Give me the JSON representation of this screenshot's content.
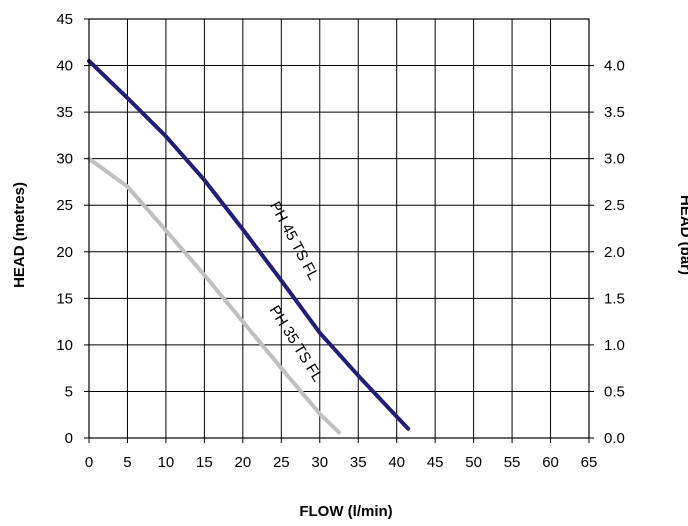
{
  "chart_data": {
    "type": "line",
    "xlabel": "FLOW (l/min)",
    "ylabel": "HEAD (metres)",
    "y2label": "HEAD (bar)",
    "xlim": [
      0,
      65
    ],
    "ylim": [
      0,
      45
    ],
    "y2lim": [
      0,
      4.5
    ],
    "xticks": [
      "0",
      "5",
      "10",
      "15",
      "20",
      "25",
      "30",
      "35",
      "40",
      "45",
      "50",
      "55",
      "60",
      "65"
    ],
    "yticks": [
      "0",
      "5",
      "10",
      "15",
      "20",
      "25",
      "30",
      "35",
      "40",
      "45"
    ],
    "y2ticks": [
      "0.0",
      "0.5",
      "1.0",
      "1.5",
      "2.0",
      "2.5",
      "3.0",
      "3.5",
      "4.0"
    ],
    "grid": true,
    "series": [
      {
        "name": "PH 45 TS FL",
        "color": "#1f1f7a",
        "x": [
          0,
          5,
          10,
          15,
          20,
          25,
          30,
          35,
          40,
          41.5
        ],
        "y": [
          40.5,
          36.5,
          32.4,
          27.7,
          22.4,
          16.9,
          11.3,
          6.7,
          2.3,
          1.0
        ]
      },
      {
        "name": "PH 35 TS FL",
        "color": "#c0c0c0",
        "x": [
          0,
          5,
          10,
          15,
          20,
          25,
          30,
          32.5
        ],
        "y": [
          30.0,
          27.0,
          22.3,
          17.5,
          12.5,
          7.5,
          2.6,
          0.6
        ]
      }
    ]
  }
}
